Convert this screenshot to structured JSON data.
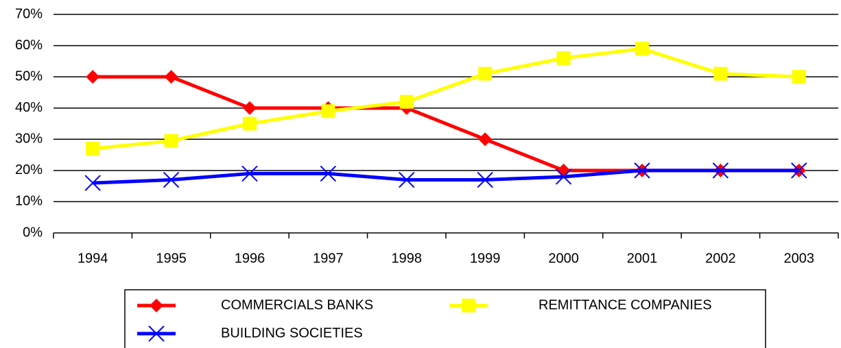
{
  "chart_data": {
    "type": "line",
    "categories": [
      "1994",
      "1995",
      "1996",
      "1997",
      "1998",
      "1999",
      "2000",
      "2001",
      "2002",
      "2003"
    ],
    "series": [
      {
        "name": "COMMERCIALS BANKS",
        "color": "#ff0000",
        "marker": "diamond",
        "values": [
          50,
          50,
          40,
          40,
          40,
          30,
          20,
          20,
          20,
          20
        ]
      },
      {
        "name": "REMITTANCE COMPANIES",
        "color": "#ffff00",
        "marker": "square",
        "values": [
          27,
          29.5,
          35,
          39,
          42,
          51,
          56,
          59,
          51,
          50
        ]
      },
      {
        "name": "BUILDING SOCIETIES",
        "color": "#0000ff",
        "marker": "x",
        "values": [
          16,
          17,
          19,
          19,
          17,
          17,
          18,
          20,
          20,
          20
        ]
      }
    ],
    "ylim": [
      0,
      70
    ],
    "yticks": [
      {
        "value": 0,
        "label": "0%"
      },
      {
        "value": 10,
        "label": "10%"
      },
      {
        "value": 20,
        "label": "20%"
      },
      {
        "value": 30,
        "label": "30%"
      },
      {
        "value": 40,
        "label": "40%"
      },
      {
        "value": 50,
        "label": "50%"
      },
      {
        "value": 60,
        "label": "60%"
      },
      {
        "value": 70,
        "label": "70%"
      }
    ],
    "grid": true
  }
}
